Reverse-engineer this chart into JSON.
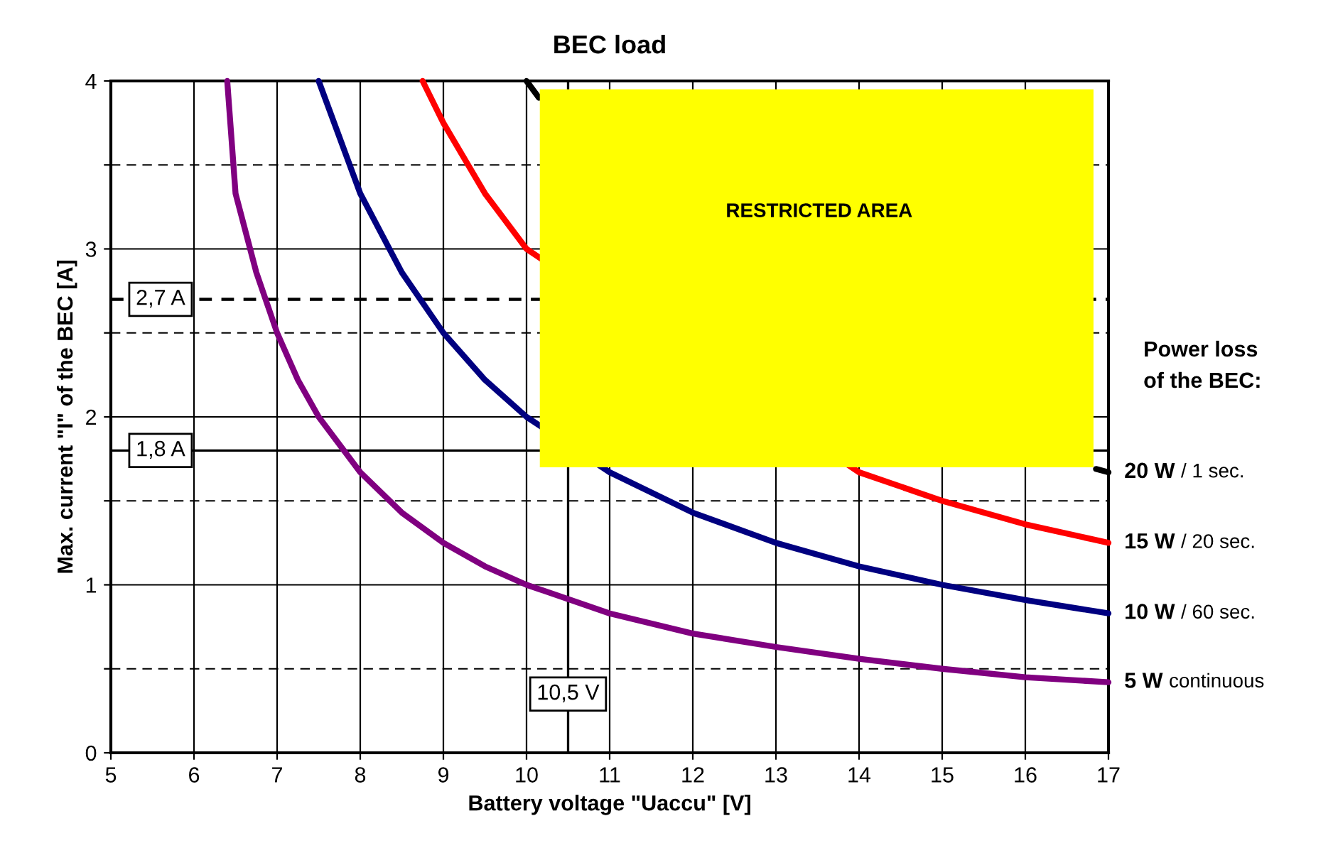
{
  "chart_data": {
    "type": "line",
    "title": "BEC load",
    "xlabel": "Battery voltage \"Uaccu\" [V]",
    "ylabel": "Max. current \"I\" of the BEC [A]",
    "legend_title": "Power loss\nof the BEC:",
    "xlim": [
      5,
      17
    ],
    "xticks": [
      5,
      6,
      7,
      8,
      9,
      10,
      11,
      12,
      13,
      14,
      15,
      16,
      17
    ],
    "ylim": [
      0,
      4
    ],
    "yticks": [
      0,
      {
        "value": 0.5,
        "label": null
      },
      1,
      {
        "value": 1.5,
        "label": null
      },
      2,
      {
        "value": 2.5,
        "label": null
      },
      3,
      {
        "value": 3.5,
        "label": null
      },
      4
    ],
    "grid": true,
    "legend": "right",
    "marker": "none",
    "line_style": "solid",
    "series": [
      {
        "name": "20 W / 1 sec.",
        "color": "#000000",
        "x": [
          10,
          10.15,
          13,
          16.85,
          17
        ],
        "values": [
          4.0,
          3.9,
          null,
          1.69,
          1.67
        ]
      },
      {
        "name": "15 W / 20 sec.",
        "color": "#ff0000",
        "x": [
          8.75,
          9,
          9.5,
          10,
          14,
          15,
          16,
          17
        ],
        "values": [
          4.0,
          3.75,
          3.33,
          3.0,
          1.67,
          1.5,
          1.36,
          1.25
        ]
      },
      {
        "name": "10 W / 60 sec.",
        "color": "#000080",
        "x": [
          7.5,
          8,
          8.5,
          9,
          9.5,
          10,
          11,
          12,
          13,
          14,
          15,
          16,
          17
        ],
        "values": [
          4.0,
          3.33,
          2.86,
          2.5,
          2.22,
          2.0,
          1.67,
          1.43,
          1.25,
          1.11,
          1.0,
          0.91,
          0.83
        ]
      },
      {
        "name": "5 W continuous",
        "color": "#800080",
        "x": [
          6.4,
          6.5,
          6.75,
          7,
          7.25,
          7.5,
          8,
          8.5,
          9,
          9.5,
          10,
          11,
          12,
          13,
          14,
          15,
          16,
          17
        ],
        "values": [
          4.0,
          3.33,
          2.86,
          2.5,
          2.22,
          2.0,
          1.67,
          1.43,
          1.25,
          1.11,
          1.0,
          0.83,
          0.71,
          0.63,
          0.56,
          0.5,
          0.45,
          0.42
        ]
      }
    ],
    "ref_lines": [
      {
        "axis": "y",
        "value": 2.7,
        "label": "2,7 A",
        "color": "#000000",
        "line_style": "dashed"
      },
      {
        "axis": "y",
        "value": 1.8,
        "label": "1,8 A",
        "color": "#000000",
        "line_style": "solid"
      },
      {
        "axis": "x",
        "value": 10.5,
        "label": "10,5 V",
        "color": "#000000",
        "line_style": "solid"
      }
    ],
    "annotations": [
      "RESTRICTED AREA"
    ]
  }
}
